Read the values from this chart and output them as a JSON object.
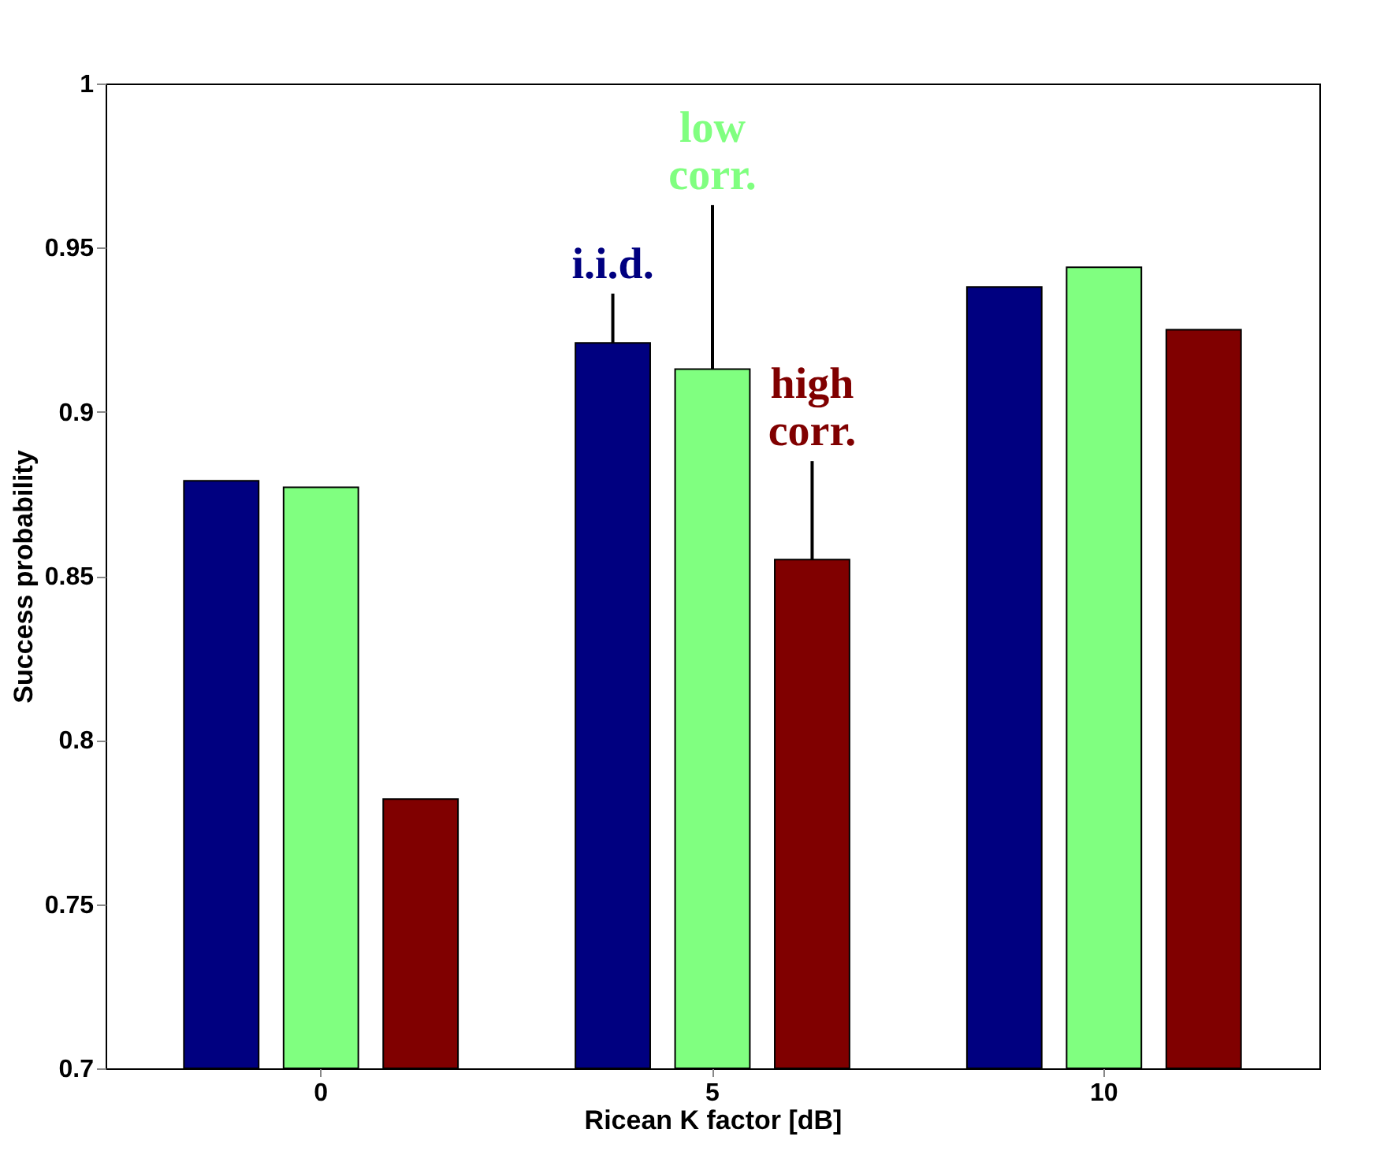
{
  "chart_data": {
    "type": "bar",
    "xlabel": "Ricean K factor [dB]",
    "ylabel": "Success probability",
    "categories": [
      "0",
      "5",
      "10"
    ],
    "series": [
      {
        "name": "i.i.d.",
        "color": "#000080",
        "values": [
          0.879,
          0.921,
          0.938
        ]
      },
      {
        "name": "low corr.",
        "color": "#80ff80",
        "values": [
          0.877,
          0.913,
          0.944
        ]
      },
      {
        "name": "high corr.",
        "color": "#800000",
        "values": [
          0.782,
          0.855,
          0.925
        ]
      }
    ],
    "ylim": [
      0.7,
      1
    ],
    "yticks": [
      0.7,
      0.75,
      0.8,
      0.85,
      0.9,
      0.95,
      1
    ],
    "grid": false,
    "legend": false
  }
}
